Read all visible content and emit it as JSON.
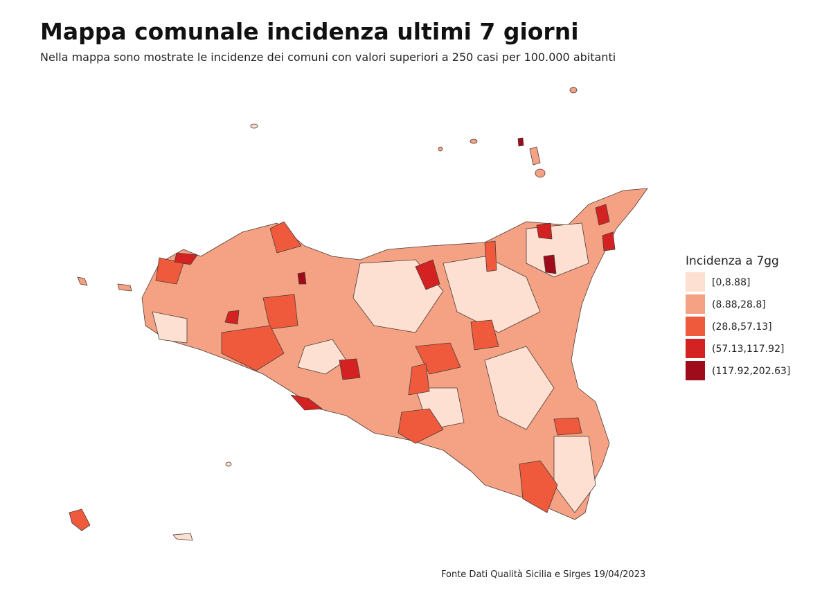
{
  "title": "Mappa comunale incidenza ultimi 7 giorni",
  "subtitle": "Nella mappa sono mostrate le incidenze dei comuni con valori superiori a 250 casi per 100.000 abitanti",
  "legend": {
    "title": "Incidenza a 7gg",
    "items": [
      {
        "label": "[0,8.88]",
        "color": "#fde0d2"
      },
      {
        "label": "(8.88,28.8]",
        "color": "#f4a283"
      },
      {
        "label": "(28.8,57.13]",
        "color": "#ef5a3c"
      },
      {
        "label": "(57.13,117.92]",
        "color": "#d42222"
      },
      {
        "label": "(117.92,202.63]",
        "color": "#9e0b1a"
      }
    ]
  },
  "source": "Fonte Dati Qualità Sicilia e Sirges 19/04/2023"
}
